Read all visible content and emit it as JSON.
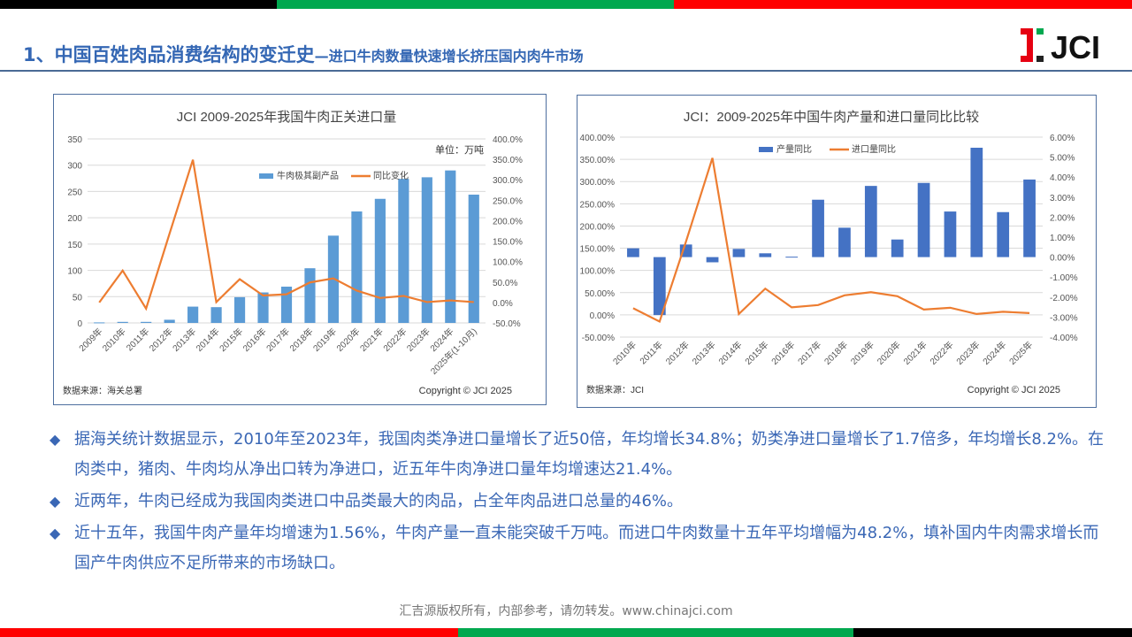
{
  "header": {
    "title_main": "1、中国百姓肉品消费结构的变迁史",
    "title_sub": "—进口牛肉数量快速增长挤压国内肉牛市场",
    "logo_text": "JCI"
  },
  "colors": {
    "bar1": "#5b9bd5",
    "bar2": "#4472c4",
    "line": "#ed7d31",
    "title": "#3467b4",
    "top_black": "#000000",
    "green": "#00a84f",
    "red": "#ff0000"
  },
  "chart_data": [
    {
      "type": "bar+line",
      "title": "JCI 2009-2025年我国牛肉正关进口量",
      "unit_label": "单位：万吨",
      "categories": [
        "2009年",
        "2010年",
        "2011年",
        "2012年",
        "2013年",
        "2014年",
        "2015年",
        "2016年",
        "2017年",
        "2018年",
        "2019年",
        "2020年",
        "2021年",
        "2022年",
        "2023年",
        "2024年",
        "2025年(1-10月)"
      ],
      "series": [
        {
          "name": "牛肉极其副产品",
          "type": "bar",
          "axis": "left",
          "values": [
            1,
            2,
            2,
            6,
            31,
            30,
            49,
            58,
            69,
            104,
            166,
            212,
            236,
            274,
            277,
            290,
            244
          ]
        },
        {
          "name": "同比变化",
          "type": "line",
          "axis": "right",
          "values": [
            0,
            78,
            -15,
            168,
            349,
            1,
            57,
            17,
            20,
            49,
            59,
            29,
            11,
            16,
            1,
            5,
            1
          ]
        }
      ],
      "left_axis": {
        "min": 0,
        "max": 350,
        "ticks": [
          "0",
          "50",
          "100",
          "150",
          "200",
          "250",
          "300",
          "350"
        ]
      },
      "right_axis": {
        "min": -50,
        "max": 400,
        "ticks": [
          "-50.0%",
          "0.0%",
          "50.0%",
          "100.0%",
          "150.0%",
          "200.0%",
          "250.0%",
          "300.0%",
          "350.0%",
          "400.0%"
        ]
      },
      "grid": true,
      "legend": "top-right",
      "source": "数据来源：海关总署",
      "copyright": "Copyright © JCI 2025"
    },
    {
      "type": "bar+line",
      "title": "JCI：2009-2025年中国牛肉产量和进口量同比比较",
      "categories": [
        "2010年",
        "2011年",
        "2012年",
        "2013年",
        "2014年",
        "2015年",
        "2016年",
        "2017年",
        "2018年",
        "2019年",
        "2020年",
        "2021年",
        "2022年",
        "2023年",
        "2024年",
        "2025年"
      ],
      "series": [
        {
          "name": "产量同比",
          "type": "bar",
          "axis": "right",
          "values": [
            0.44,
            -2.9,
            0.63,
            -0.26,
            0.41,
            0.19,
            0.02,
            2.87,
            1.47,
            3.56,
            0.88,
            3.71,
            2.28,
            5.47,
            2.25,
            3.88
          ]
        },
        {
          "name": "进口量同比",
          "type": "line",
          "axis": "left",
          "values": [
            15,
            -15,
            165,
            353,
            2,
            59,
            17,
            22,
            44,
            51,
            42,
            12,
            16,
            2,
            7,
            4
          ]
        }
      ],
      "left_axis": {
        "min": -50,
        "max": 400,
        "ticks": [
          "-50.00%",
          "0.00%",
          "50.00%",
          "100.00%",
          "150.00%",
          "200.00%",
          "250.00%",
          "300.00%",
          "350.00%",
          "400.00%"
        ]
      },
      "right_axis": {
        "min": -4,
        "max": 6,
        "ticks": [
          "-4.00%",
          "-3.00%",
          "-2.00%",
          "-1.00%",
          "0.00%",
          "1.00%",
          "2.00%",
          "3.00%",
          "4.00%",
          "5.00%",
          "6.00%"
        ]
      },
      "grid": true,
      "legend": "top-center",
      "source": "数据来源：JCI",
      "copyright": "Copyright © JCI 2025"
    }
  ],
  "bullets": [
    "据海关统计数据显示，2010年至2023年，我国肉类净进口量增长了近50倍，年均增长34.8%；奶类净进口量增长了1.7倍多，年均增长8.2%。在肉类中，猪肉、牛肉均从净出口转为净进口，近五年牛肉净进口量年均增速达21.4%。",
    "近两年，牛肉已经成为我国肉类进口中品类最大的肉品，占全年肉品进口总量的46%。",
    "近十五年，我国牛肉产量年均增速为1.56%，牛肉产量一直未能突破千万吨。而进口牛肉数量十五年平均增幅为48.2%，填补国内牛肉需求增长而国产牛肉供应不足所带来的市场缺口。"
  ],
  "footer": "汇吉源版权所有，内部参考，请勿转发。www.chinajci.com"
}
